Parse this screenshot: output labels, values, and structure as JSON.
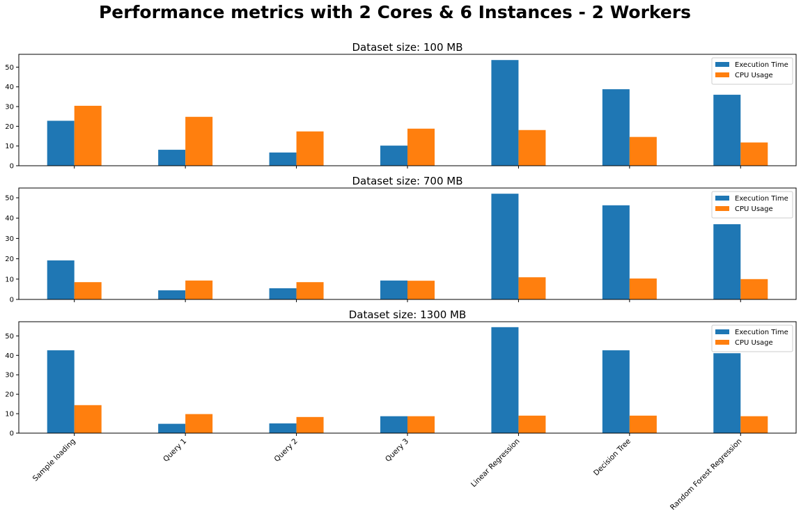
{
  "figure": {
    "title": "Performance metrics with 2 Cores & 6 Instances - 2 Workers"
  },
  "colors": {
    "execution_time": "#1f77b4",
    "cpu_usage": "#ff7f0e",
    "axis": "#000000",
    "background": "#ffffff"
  },
  "chart_data": [
    {
      "type": "bar",
      "title": "Dataset size: 100 MB",
      "categories": [
        "Sample loading",
        "Query 1",
        "Query 2",
        "Query 3",
        "Linear Regression",
        "Decision Tree",
        "Random Forest Regression"
      ],
      "series": [
        {
          "name": "Execution Time",
          "values": [
            22.8,
            8.1,
            6.7,
            10.2,
            53.6,
            38.8,
            36.0
          ]
        },
        {
          "name": "CPU Usage",
          "values": [
            30.4,
            24.8,
            17.4,
            18.8,
            18.1,
            14.6,
            11.8
          ]
        }
      ],
      "ylim": [
        0,
        56.5
      ],
      "yticks": [
        0,
        10,
        20,
        30,
        40,
        50
      ],
      "legend": "upper right",
      "grid": false
    },
    {
      "type": "bar",
      "title": "Dataset size: 700 MB",
      "categories": [
        "Sample loading",
        "Query 1",
        "Query 2",
        "Query 3",
        "Linear Regression",
        "Decision Tree",
        "Random Forest Regression"
      ],
      "series": [
        {
          "name": "Execution Time",
          "values": [
            19.2,
            4.5,
            5.5,
            9.3,
            52.0,
            46.3,
            37.0
          ]
        },
        {
          "name": "CPU Usage",
          "values": [
            8.5,
            9.3,
            8.5,
            9.2,
            10.9,
            10.3,
            10.0
          ]
        }
      ],
      "ylim": [
        0,
        54.8
      ],
      "yticks": [
        0,
        10,
        20,
        30,
        40,
        50
      ],
      "legend": "upper right",
      "grid": false
    },
    {
      "type": "bar",
      "title": "Dataset size: 1300 MB",
      "categories": [
        "Sample loading",
        "Query 1",
        "Query 2",
        "Query 3",
        "Linear Regression",
        "Decision Tree",
        "Random Forest Regression"
      ],
      "series": [
        {
          "name": "Execution Time",
          "values": [
            42.6,
            4.8,
            5.0,
            8.7,
            54.5,
            42.6,
            41.1
          ]
        },
        {
          "name": "CPU Usage",
          "values": [
            14.4,
            9.8,
            8.3,
            8.7,
            9.0,
            9.0,
            8.7
          ]
        }
      ],
      "ylim": [
        0,
        57.3
      ],
      "yticks": [
        0,
        10,
        20,
        30,
        40,
        50
      ],
      "legend": "upper right",
      "grid": false
    }
  ]
}
